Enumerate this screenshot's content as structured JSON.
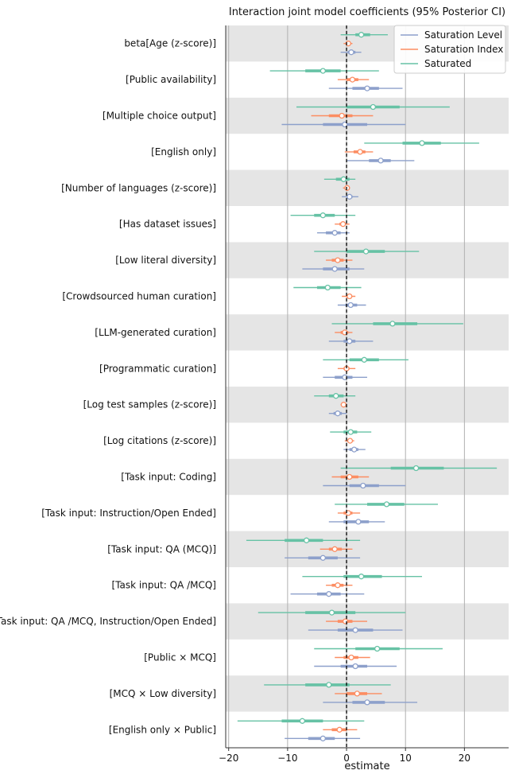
{
  "chart_data": {
    "type": "forest",
    "title": "Interaction joint model coefficients (95% Posterior CI)",
    "xlabel": "estimate",
    "xlim": [
      -20.5,
      27.5
    ],
    "xticks": [
      -20,
      -10,
      0,
      10,
      20
    ],
    "xtick_labels": [
      "−20",
      "−10",
      "0",
      "10",
      "20"
    ],
    "legend": {
      "placement": "top-right"
    },
    "series": [
      {
        "name": "Saturation Level",
        "color": "#8da0cb"
      },
      {
        "name": "Saturation Index",
        "color": "#fc8d62"
      },
      {
        "name": "Saturated",
        "color": "#66c2a5"
      }
    ],
    "rows": [
      {
        "label": "beta[Age (z-score)]",
        "Saturated": [
          -1.0,
          1.5,
          2.5,
          4.0,
          7.0
        ],
        "Saturation Index": [
          -0.5,
          0.0,
          0.3,
          0.6,
          1.0
        ],
        "Saturation Level": [
          -1.0,
          0.2,
          0.8,
          1.5,
          2.5
        ]
      },
      {
        "label": "[Public availability]",
        "Saturated": [
          -13.0,
          -7.0,
          -4.0,
          -1.0,
          5.5
        ],
        "Saturation Index": [
          -1.5,
          0.0,
          1.0,
          2.0,
          3.8
        ],
        "Saturation Level": [
          -3.0,
          1.0,
          3.5,
          5.5,
          9.5
        ]
      },
      {
        "label": "[Multiple choice output]",
        "Saturated": [
          -8.5,
          0.0,
          4.5,
          9.0,
          17.5
        ],
        "Saturation Index": [
          -6.0,
          -3.0,
          -0.8,
          1.0,
          4.5
        ],
        "Saturation Level": [
          -11.0,
          -4.0,
          -0.3,
          3.5,
          10.0
        ]
      },
      {
        "label": "[English only]",
        "Saturated": [
          3.0,
          9.5,
          12.8,
          16.0,
          22.5
        ],
        "Saturation Index": [
          -0.3,
          1.2,
          2.3,
          3.2,
          4.5
        ],
        "Saturation Level": [
          0.0,
          3.8,
          5.8,
          7.5,
          11.5
        ]
      },
      {
        "label": "[Number of languages (z-score)]",
        "Saturated": [
          -3.8,
          -1.8,
          -0.5,
          0.5,
          1.5
        ],
        "Saturation Index": [
          -0.6,
          -0.2,
          0.1,
          0.3,
          0.6
        ],
        "Saturation Level": [
          -0.8,
          0.0,
          0.5,
          1.0,
          2.0
        ]
      },
      {
        "label": "[Has dataset issues]",
        "Saturated": [
          -9.5,
          -5.5,
          -4.0,
          -2.0,
          1.5
        ],
        "Saturation Index": [
          -2.0,
          -1.2,
          -0.6,
          -0.2,
          0.5
        ],
        "Saturation Level": [
          -5.0,
          -3.5,
          -2.0,
          -1.0,
          0.5
        ]
      },
      {
        "label": "[Low literal diversity]",
        "Saturated": [
          -5.5,
          0.0,
          3.3,
          6.5,
          12.3
        ],
        "Saturation Index": [
          -3.5,
          -2.5,
          -1.5,
          -0.5,
          1.0
        ],
        "Saturation Level": [
          -7.5,
          -4.0,
          -2.0,
          0.5,
          3.0
        ]
      },
      {
        "label": "[Crowdsourced human curation]",
        "Saturated": [
          -9.0,
          -5.0,
          -3.2,
          -1.0,
          2.5
        ],
        "Saturation Index": [
          -0.8,
          0.0,
          0.5,
          0.8,
          1.5
        ],
        "Saturation Level": [
          -1.5,
          -0.2,
          0.7,
          1.8,
          3.3
        ]
      },
      {
        "label": "[LLM-generated curation]",
        "Saturated": [
          -2.5,
          4.5,
          7.8,
          12.0,
          19.8
        ],
        "Saturation Index": [
          -2.0,
          -1.0,
          -0.3,
          0.3,
          1.0
        ],
        "Saturation Level": [
          -3.0,
          -0.5,
          0.5,
          1.5,
          4.5
        ]
      },
      {
        "label": "[Programmatic curation]",
        "Saturated": [
          -4.0,
          0.5,
          3.0,
          5.5,
          10.5
        ],
        "Saturation Index": [
          -1.5,
          -0.5,
          0.0,
          0.5,
          1.5
        ],
        "Saturation Level": [
          -4.0,
          -2.0,
          -0.3,
          1.0,
          3.5
        ]
      },
      {
        "label": "[Log test samples (z-score)]",
        "Saturated": [
          -5.5,
          -3.0,
          -1.8,
          -0.5,
          1.5
        ],
        "Saturation Index": [
          -1.0,
          -0.6,
          -0.5,
          -0.3,
          0.0
        ],
        "Saturation Level": [
          -3.0,
          -2.2,
          -1.5,
          -0.8,
          0.0
        ]
      },
      {
        "label": "[Log citations (z-score)]",
        "Saturated": [
          -2.8,
          -0.5,
          0.7,
          1.8,
          4.2
        ],
        "Saturation Index": [
          -0.3,
          0.2,
          0.6,
          0.9,
          1.3
        ],
        "Saturation Level": [
          -0.5,
          0.5,
          1.3,
          2.0,
          3.2
        ]
      },
      {
        "label": "[Task input: Coding]",
        "Saturated": [
          -1.0,
          7.5,
          11.8,
          16.5,
          25.5
        ],
        "Saturation Index": [
          -2.5,
          -1.0,
          0.5,
          2.0,
          3.8
        ],
        "Saturation Level": [
          -4.0,
          0.5,
          2.8,
          5.5,
          10.0
        ]
      },
      {
        "label": "[Task input: Instruction/Open Ended]",
        "Saturated": [
          -2.0,
          3.5,
          6.8,
          9.8,
          15.5
        ],
        "Saturation Index": [
          -1.5,
          -0.5,
          0.3,
          1.0,
          2.3
        ],
        "Saturation Level": [
          -3.0,
          -0.5,
          2.0,
          3.8,
          6.5
        ]
      },
      {
        "label": "[Task input: QA (MCQ)]",
        "Saturated": [
          -17.0,
          -10.5,
          -6.8,
          -4.0,
          2.3
        ],
        "Saturation Index": [
          -4.5,
          -3.0,
          -2.0,
          -0.8,
          1.0
        ],
        "Saturation Level": [
          -10.5,
          -6.5,
          -4.0,
          -1.5,
          2.3
        ]
      },
      {
        "label": "[Task input: QA /MCQ]",
        "Saturated": [
          -7.5,
          -0.5,
          2.5,
          6.0,
          12.8
        ],
        "Saturation Index": [
          -3.5,
          -2.5,
          -1.5,
          -0.5,
          1.0
        ],
        "Saturation Level": [
          -9.5,
          -5.0,
          -3.0,
          -1.0,
          3.0
        ]
      },
      {
        "label": "[Task input: QA /MCQ, Instruction/Open Ended]",
        "Saturated": [
          -15.0,
          -7.0,
          -2.5,
          1.5,
          10.0
        ],
        "Saturation Index": [
          -3.5,
          -1.5,
          -0.2,
          1.0,
          3.5
        ],
        "Saturation Level": [
          -6.5,
          -1.5,
          1.5,
          4.5,
          9.5
        ]
      },
      {
        "label": "[Public × MCQ]",
        "Saturated": [
          -5.5,
          1.5,
          5.2,
          9.0,
          16.3
        ],
        "Saturation Index": [
          -2.0,
          -0.5,
          0.8,
          2.0,
          4.0
        ],
        "Saturation Level": [
          -5.5,
          -1.0,
          1.5,
          3.5,
          8.5
        ]
      },
      {
        "label": "[MCQ × Low diversity]",
        "Saturated": [
          -14.0,
          -7.0,
          -3.0,
          0.5,
          7.5
        ],
        "Saturation Index": [
          -2.0,
          0.0,
          1.8,
          3.5,
          6.0
        ],
        "Saturation Level": [
          -4.0,
          1.0,
          3.5,
          6.5,
          12.0
        ]
      },
      {
        "label": "[English only × Public]",
        "Saturated": [
          -18.5,
          -11.0,
          -7.5,
          -4.0,
          3.0
        ],
        "Saturation Index": [
          -4.0,
          -2.5,
          -1.2,
          0.0,
          1.8
        ],
        "Saturation Level": [
          -10.5,
          -6.5,
          -4.0,
          -2.0,
          2.3
        ]
      }
    ]
  }
}
